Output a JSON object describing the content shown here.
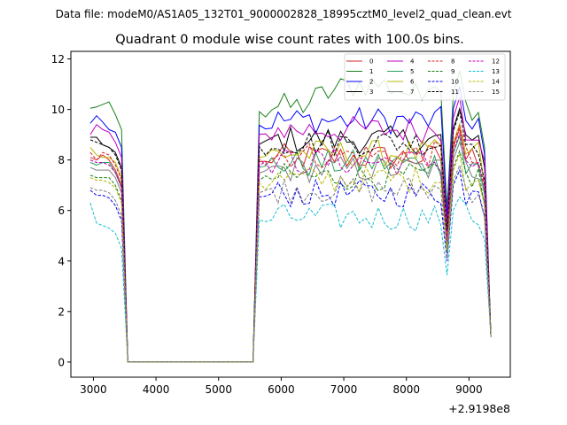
{
  "figure": {
    "suptitle": "Data file: modeM0/AS1A05_132T01_9000002828_18995cztM0_level2_quad_clean.evt"
  },
  "chart_data": {
    "type": "line",
    "title": "Quadrant 0 module wise count rates with 100.0s bins.",
    "xlabel": "",
    "ylabel": "",
    "x_offset_label": "+2.9198e8",
    "xlim": [
      2640,
      9660
    ],
    "ylim": [
      -0.6,
      12.3
    ],
    "xticks": [
      3000,
      4000,
      5000,
      6000,
      7000,
      8000,
      9000
    ],
    "xtick_labels": [
      "3000",
      "4000",
      "5000",
      "6000",
      "7000",
      "8000",
      "9000"
    ],
    "yticks": [
      0,
      2,
      4,
      6,
      8,
      10,
      12
    ],
    "ytick_labels": [
      "0",
      "2",
      "4",
      "6",
      "8",
      "10",
      "12"
    ],
    "legend_position": "top-right",
    "x": [
      2950,
      3050,
      3150,
      3250,
      3350,
      3450,
      3550,
      3650,
      3750,
      3850,
      3950,
      4050,
      4150,
      4250,
      4350,
      4450,
      4550,
      4650,
      4750,
      4850,
      4950,
      5050,
      5150,
      5250,
      5350,
      5450,
      5550,
      5650,
      5750,
      5850,
      5950,
      6050,
      6150,
      6250,
      6350,
      6450,
      6550,
      6650,
      6750,
      6850,
      6950,
      7050,
      7150,
      7250,
      7350,
      7450,
      7550,
      7650,
      7750,
      7850,
      7950,
      8050,
      8150,
      8250,
      8350,
      8450,
      8550,
      8650,
      8750,
      8850,
      8950,
      9050,
      9150,
      9250,
      9350
    ],
    "series": [
      {
        "name": "0",
        "color": "#d62728",
        "dash": "solid",
        "base": [
          8.1,
          8.0,
          8.2,
          8.0,
          7.6
        ]
      },
      {
        "name": "1",
        "color": "#1a801a",
        "dash": "solid",
        "base": [
          10.05,
          10.1,
          10.2,
          10.3,
          9.8
        ]
      },
      {
        "name": "2",
        "color": "#0000ff",
        "dash": "solid",
        "base": [
          9.45,
          9.75,
          9.5,
          9.2,
          9.1
        ]
      },
      {
        "name": "3",
        "color": "#000000",
        "dash": "solid",
        "base": [
          8.9,
          8.9,
          8.6,
          8.5,
          8.3
        ]
      },
      {
        "name": "4",
        "color": "#c000c0",
        "dash": "solid",
        "base": [
          9.0,
          9.4,
          9.2,
          9.1,
          8.7
        ]
      },
      {
        "name": "5",
        "color": "#2ca25f",
        "dash": "solid",
        "base": [
          7.9,
          7.8,
          7.9,
          7.9,
          7.5
        ]
      },
      {
        "name": "6",
        "color": "#b8b800",
        "dash": "solid",
        "base": [
          8.5,
          8.2,
          8.1,
          8.1,
          7.9
        ]
      },
      {
        "name": "7",
        "color": "#7f7f7f",
        "dash": "solid",
        "base": [
          7.7,
          7.6,
          7.6,
          7.6,
          7.3
        ]
      },
      {
        "name": "8",
        "color": "#d62728",
        "dash": "dashed",
        "base": [
          8.3,
          8.0,
          8.3,
          8.2,
          7.8
        ]
      },
      {
        "name": "9",
        "color": "#1a801a",
        "dash": "dashed",
        "base": [
          7.4,
          7.3,
          7.3,
          7.3,
          7.0
        ]
      },
      {
        "name": "10",
        "color": "#0000ff",
        "dash": "dashed",
        "base": [
          6.8,
          6.6,
          6.6,
          6.5,
          6.2
        ]
      },
      {
        "name": "11",
        "color": "#000000",
        "dash": "dashed",
        "base": [
          8.8,
          8.7,
          8.6,
          8.5,
          8.2
        ]
      },
      {
        "name": "12",
        "color": "#c000c0",
        "dash": "dashed",
        "base": [
          8.0,
          7.9,
          7.9,
          7.8,
          7.5
        ]
      },
      {
        "name": "13",
        "color": "#17becf",
        "dash": "dashed",
        "base": [
          6.3,
          5.5,
          5.4,
          5.3,
          5.1
        ]
      },
      {
        "name": "14",
        "color": "#b8b800",
        "dash": "dashed",
        "base": [
          7.3,
          7.2,
          7.2,
          7.1,
          6.9
        ]
      },
      {
        "name": "15",
        "color": "#7f7f7f",
        "dash": "dashed",
        "base": [
          6.9,
          6.8,
          6.8,
          6.7,
          6.4
        ]
      }
    ],
    "data_note": "All series drop to 0 between x=3550 and x=5550, rise again at 5650 and stay near the pre-gap level (series 1 reaching ~11.7 near 8500) before a dip at 8650, a peak near 8850 and a final drop to ~1.0 at 9350."
  }
}
